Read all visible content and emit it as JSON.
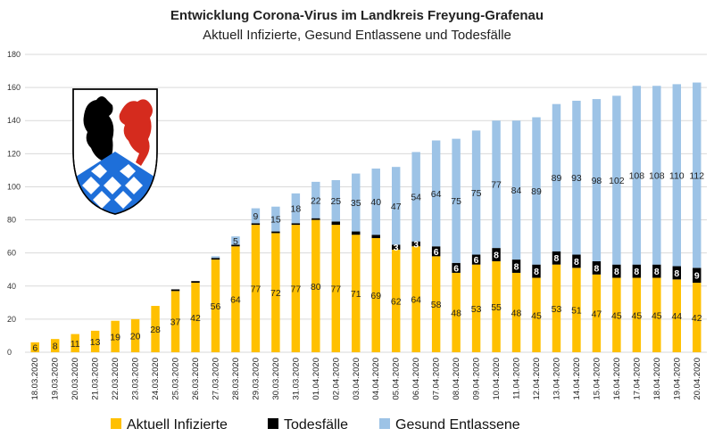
{
  "chart_data": {
    "type": "bar",
    "stacked": true,
    "title": "Entwicklung Corona-Virus im Landkreis Freyung-Grafenau",
    "subtitle": "Aktuell Infizierte, Gesund Entlassene und Todesfälle",
    "ylim": [
      0,
      180
    ],
    "yticks": [
      0,
      20,
      40,
      60,
      80,
      100,
      120,
      140,
      160,
      180
    ],
    "grid": "horizontal",
    "legend_position": "bottom",
    "categories": [
      "18.03.2020",
      "19.03.2020",
      "20.03.2020",
      "21.03.2020",
      "22.03.2020",
      "23.03.2020",
      "24.03.2020",
      "25.03.2020",
      "26.03.2020",
      "27.03.2020",
      "28.03.2020",
      "29.03.2020",
      "30.03.2020",
      "31.03.2020",
      "01.04.2020",
      "02.04.2020",
      "03.04.2020",
      "04.04.2020",
      "05.04.2020",
      "06.04.2020",
      "07.04.2020",
      "08.04.2020",
      "09.04.2020",
      "10.04.2020",
      "11.04.2020",
      "12.04.2020",
      "13.04.2020",
      "14.04.2020",
      "15.04.2020",
      "16.04.2020",
      "17.04.2020",
      "18.04.2020",
      "19.04.2020",
      "20.04.2020"
    ],
    "series": [
      {
        "name": "Aktuell Infizierte",
        "color": "#FFC000",
        "values": [
          6,
          8,
          11,
          13,
          19,
          20,
          28,
          37,
          42,
          56,
          64,
          77,
          72,
          77,
          80,
          77,
          71,
          69,
          62,
          64,
          58,
          48,
          53,
          55,
          48,
          45,
          53,
          51,
          47,
          45,
          45,
          45,
          44,
          42
        ],
        "labels": [
          "6",
          "8",
          "11",
          "13",
          "19",
          "20",
          "28",
          "37",
          "42",
          "56",
          "64",
          "77",
          "72",
          "77",
          "80",
          "77",
          "71",
          "69",
          "62",
          "64",
          "58",
          "48",
          "53",
          "55",
          "48",
          "45",
          "53",
          "51",
          "47",
          "45",
          "45",
          "45",
          "44",
          "42"
        ]
      },
      {
        "name": "Todesfälle",
        "color": "#000000",
        "values": [
          0,
          0,
          0,
          0,
          0,
          0,
          0,
          1,
          1,
          1,
          1,
          1,
          1,
          1,
          1,
          2,
          2,
          2,
          3,
          3,
          6,
          6,
          6,
          8,
          8,
          8,
          8,
          8,
          8,
          8,
          8,
          8,
          8,
          9
        ],
        "labels": [
          "",
          "",
          "",
          "",
          "",
          "",
          "",
          "",
          "",
          "",
          "",
          "",
          "",
          "",
          "",
          "",
          "",
          "",
          "3",
          "3",
          "6",
          "6",
          "6",
          "8",
          "8",
          "8",
          "8",
          "8",
          "8",
          "8",
          "8",
          "8",
          "8",
          "9"
        ]
      },
      {
        "name": "Gesund Entlassene",
        "color": "#9DC3E6",
        "values": [
          0,
          0,
          0,
          0,
          0,
          0,
          0,
          0,
          0,
          1,
          5,
          9,
          15,
          18,
          22,
          25,
          35,
          40,
          47,
          54,
          64,
          75,
          75,
          77,
          84,
          89,
          89,
          93,
          98,
          102,
          108,
          108,
          110,
          112
        ],
        "labels": [
          "",
          "",
          "",
          "",
          "",
          "",
          "",
          "",
          "",
          "",
          "5",
          "9",
          "15",
          "18",
          "22",
          "25",
          "35",
          "40",
          "47",
          "54",
          "64",
          "75",
          "75",
          "77",
          "84",
          "89",
          "89",
          "93",
          "98",
          "102",
          "108",
          "108",
          "110",
          "112"
        ]
      }
    ]
  },
  "logo": {
    "name": "coat-of-arms-freyung-grafenau",
    "colors": [
      "#000000",
      "#D52B1E",
      "#1E6FD9",
      "#ffffff"
    ]
  }
}
